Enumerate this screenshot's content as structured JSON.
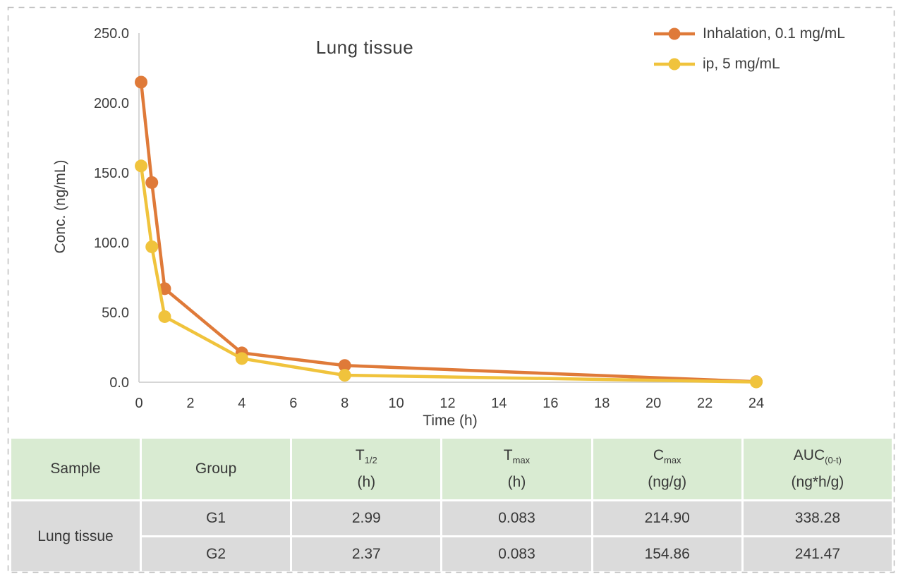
{
  "chart_data": {
    "type": "line",
    "title": "Lung tissue",
    "xlabel": "Time (h)",
    "ylabel": "Conc. (ng/mL)",
    "xlim": [
      0,
      24
    ],
    "ylim": [
      0,
      250
    ],
    "xticks": [
      0,
      2,
      4,
      6,
      8,
      10,
      12,
      14,
      16,
      18,
      20,
      22,
      24
    ],
    "yticks": [
      0,
      50,
      100,
      150,
      200,
      250
    ],
    "ytick_decimals": 1,
    "grid": false,
    "legend_position": "top-right",
    "x": [
      0.083,
      0.5,
      1,
      4,
      8,
      24
    ],
    "series": [
      {
        "name": "Inhalation, 0.1 mg/mL",
        "color": "#DF7A39",
        "values": [
          214.9,
          143,
          67,
          21,
          12,
          0.4
        ]
      },
      {
        "name": "ip, 5 mg/mL",
        "color": "#F0C33C",
        "values": [
          154.9,
          97,
          47,
          17,
          5,
          0.2
        ]
      }
    ]
  },
  "table": {
    "columns": [
      {
        "label": "Sample"
      },
      {
        "label": "Group"
      },
      {
        "symbol": "T",
        "sub": "1/2",
        "unit": "(h)"
      },
      {
        "symbol": "T",
        "sub": "max",
        "unit": "(h)"
      },
      {
        "symbol": "C",
        "sub": "max",
        "unit": "(ng/g)"
      },
      {
        "symbol": "AUC",
        "sub": "(0-t)",
        "unit": "(ng*h/g)"
      }
    ],
    "sample_label": "Lung tissue",
    "rows": [
      {
        "group": "G1",
        "t_half": "2.99",
        "t_max": "0.083",
        "c_max": "214.90",
        "auc": "338.28"
      },
      {
        "group": "G2",
        "t_half": "2.37",
        "t_max": "0.083",
        "c_max": "154.86",
        "auc": "241.47"
      }
    ]
  },
  "frame": {
    "border_color": "#bdbdbd"
  }
}
